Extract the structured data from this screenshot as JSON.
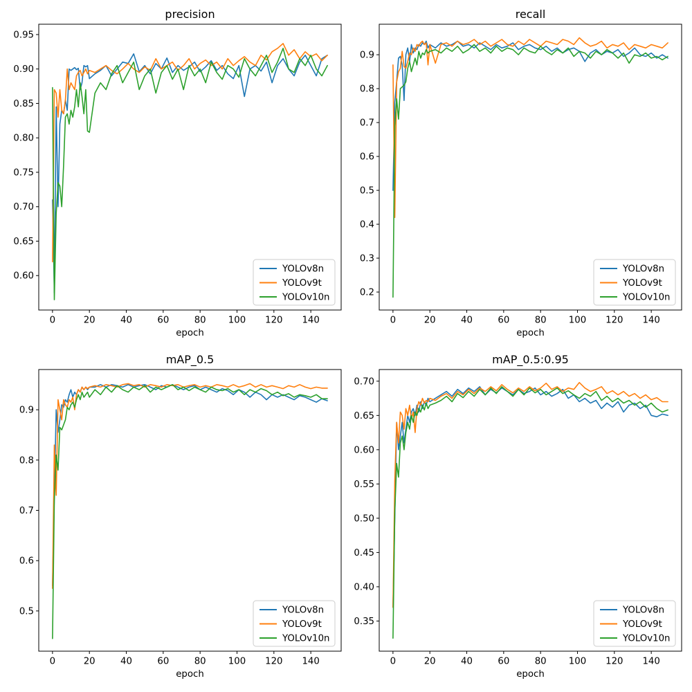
{
  "figure": {
    "background": "#ffffff",
    "frame_color": "#000000"
  },
  "palette": {
    "blue": "#1f77b4",
    "orange": "#ff7f0e",
    "green": "#2ca02c"
  },
  "legend": {
    "location": "lower right",
    "labels": [
      "YOLOv8n",
      "YOLOv9t",
      "YOLOv10n"
    ]
  },
  "epochs": [
    0,
    1,
    2,
    3,
    4,
    5,
    6,
    7,
    8,
    9,
    10,
    11,
    12,
    13,
    14,
    15,
    16,
    17,
    18,
    19,
    20,
    23,
    26,
    29,
    32,
    35,
    38,
    41,
    44,
    47,
    50,
    53,
    56,
    59,
    62,
    65,
    68,
    71,
    74,
    77,
    80,
    83,
    86,
    89,
    92,
    95,
    98,
    101,
    104,
    107,
    110,
    113,
    116,
    119,
    122,
    125,
    128,
    131,
    134,
    137,
    140,
    143,
    146,
    149
  ],
  "chart_data": [
    {
      "type": "line",
      "title": "precision",
      "xlabel": "epoch",
      "xlim": [
        -7.45,
        156.45
      ],
      "ylim": [
        0.55,
        0.965
      ],
      "xticks": [
        0,
        20,
        40,
        60,
        80,
        100,
        120,
        140
      ],
      "yticks": [
        "0.60",
        "0.65",
        "0.70",
        "0.75",
        "0.80",
        "0.85",
        "0.90",
        "0.95"
      ],
      "grid": false,
      "legend_position": "lower right",
      "series": [
        {
          "name": "YOLOv8n",
          "color": "#1f77b4",
          "values": [
            0.71,
            0.575,
            0.845,
            0.7,
            0.82,
            0.84,
            0.835,
            0.855,
            0.84,
            0.9,
            0.898,
            0.9,
            0.902,
            0.899,
            0.901,
            0.87,
            0.88,
            0.905,
            0.903,
            0.905,
            0.886,
            0.893,
            0.898,
            0.905,
            0.89,
            0.9,
            0.91,
            0.908,
            0.922,
            0.896,
            0.905,
            0.893,
            0.908,
            0.9,
            0.916,
            0.895,
            0.905,
            0.898,
            0.903,
            0.91,
            0.896,
            0.903,
            0.912,
            0.898,
            0.905,
            0.893,
            0.886,
            0.905,
            0.86,
            0.9,
            0.905,
            0.897,
            0.91,
            0.88,
            0.905,
            0.915,
            0.9,
            0.89,
            0.91,
            0.92,
            0.905,
            0.89,
            0.915,
            0.92
          ]
        },
        {
          "name": "YOLOv9t",
          "color": "#ff7f0e",
          "values": [
            0.62,
            0.87,
            0.865,
            0.83,
            0.87,
            0.84,
            0.835,
            0.855,
            0.9,
            0.87,
            0.88,
            0.875,
            0.87,
            0.89,
            0.895,
            0.898,
            0.89,
            0.895,
            0.9,
            0.893,
            0.898,
            0.895,
            0.9,
            0.905,
            0.898,
            0.893,
            0.9,
            0.908,
            0.9,
            0.895,
            0.903,
            0.898,
            0.915,
            0.9,
            0.905,
            0.91,
            0.898,
            0.905,
            0.915,
            0.9,
            0.908,
            0.913,
            0.905,
            0.91,
            0.9,
            0.915,
            0.905,
            0.912,
            0.918,
            0.91,
            0.905,
            0.92,
            0.913,
            0.925,
            0.93,
            0.937,
            0.92,
            0.928,
            0.915,
            0.925,
            0.918,
            0.922,
            0.912,
            0.92
          ]
        },
        {
          "name": "YOLOv10n",
          "color": "#2ca02c",
          "values": [
            0.873,
            0.565,
            0.69,
            0.735,
            0.73,
            0.7,
            0.76,
            0.83,
            0.835,
            0.82,
            0.84,
            0.83,
            0.845,
            0.87,
            0.845,
            0.88,
            0.86,
            0.835,
            0.87,
            0.81,
            0.808,
            0.865,
            0.88,
            0.87,
            0.893,
            0.905,
            0.88,
            0.895,
            0.91,
            0.87,
            0.89,
            0.9,
            0.865,
            0.895,
            0.905,
            0.885,
            0.9,
            0.87,
            0.905,
            0.89,
            0.9,
            0.88,
            0.91,
            0.895,
            0.885,
            0.905,
            0.9,
            0.888,
            0.915,
            0.9,
            0.89,
            0.905,
            0.92,
            0.895,
            0.91,
            0.93,
            0.9,
            0.895,
            0.915,
            0.905,
            0.92,
            0.9,
            0.89,
            0.905
          ]
        }
      ]
    },
    {
      "type": "line",
      "title": "recall",
      "xlabel": "epoch",
      "xlim": [
        -7.45,
        156.45
      ],
      "ylim": [
        0.147,
        0.99
      ],
      "xticks": [
        0,
        20,
        40,
        60,
        80,
        100,
        120,
        140
      ],
      "yticks": [
        "0.2",
        "0.3",
        "0.4",
        "0.5",
        "0.6",
        "0.7",
        "0.8",
        "0.9"
      ],
      "grid": false,
      "legend_position": "lower right",
      "series": [
        {
          "name": "YOLOv8n",
          "color": "#1f77b4",
          "values": [
            0.5,
            0.76,
            0.82,
            0.89,
            0.895,
            0.87,
            0.765,
            0.9,
            0.92,
            0.88,
            0.93,
            0.905,
            0.92,
            0.915,
            0.93,
            0.925,
            0.935,
            0.93,
            0.94,
            0.92,
            0.93,
            0.92,
            0.935,
            0.925,
            0.93,
            0.94,
            0.925,
            0.93,
            0.92,
            0.935,
            0.925,
            0.915,
            0.93,
            0.92,
            0.925,
            0.935,
            0.915,
            0.925,
            0.93,
            0.92,
            0.915,
            0.925,
            0.91,
            0.92,
            0.905,
            0.915,
            0.92,
            0.91,
            0.88,
            0.905,
            0.915,
            0.9,
            0.91,
            0.905,
            0.915,
            0.895,
            0.905,
            0.92,
            0.9,
            0.895,
            0.905,
            0.89,
            0.9,
            0.89
          ]
        },
        {
          "name": "YOLOv9t",
          "color": "#ff7f0e",
          "values": [
            0.87,
            0.42,
            0.82,
            0.85,
            0.86,
            0.91,
            0.865,
            0.86,
            0.88,
            0.905,
            0.9,
            0.92,
            0.91,
            0.93,
            0.925,
            0.935,
            0.94,
            0.93,
            0.935,
            0.87,
            0.93,
            0.875,
            0.93,
            0.935,
            0.925,
            0.94,
            0.93,
            0.935,
            0.945,
            0.93,
            0.94,
            0.925,
            0.935,
            0.945,
            0.93,
            0.925,
            0.94,
            0.93,
            0.945,
            0.935,
            0.925,
            0.94,
            0.935,
            0.93,
            0.945,
            0.94,
            0.93,
            0.95,
            0.935,
            0.925,
            0.93,
            0.94,
            0.92,
            0.93,
            0.925,
            0.935,
            0.915,
            0.93,
            0.925,
            0.92,
            0.93,
            0.925,
            0.92,
            0.935
          ]
        },
        {
          "name": "YOLOv10n",
          "color": "#2ca02c",
          "values": [
            0.185,
            0.69,
            0.77,
            0.71,
            0.8,
            0.805,
            0.81,
            0.82,
            0.86,
            0.88,
            0.85,
            0.87,
            0.89,
            0.87,
            0.91,
            0.89,
            0.905,
            0.9,
            0.915,
            0.905,
            0.91,
            0.915,
            0.905,
            0.92,
            0.91,
            0.925,
            0.905,
            0.915,
            0.93,
            0.91,
            0.92,
            0.905,
            0.925,
            0.91,
            0.92,
            0.915,
            0.9,
            0.92,
            0.91,
            0.905,
            0.925,
            0.91,
            0.9,
            0.915,
            0.905,
            0.92,
            0.895,
            0.91,
            0.905,
            0.89,
            0.91,
            0.9,
            0.915,
            0.905,
            0.89,
            0.905,
            0.875,
            0.9,
            0.895,
            0.905,
            0.89,
            0.895,
            0.885,
            0.895
          ]
        }
      ]
    },
    {
      "type": "line",
      "title": "mAP_0.5",
      "xlabel": "epoch",
      "xlim": [
        -7.45,
        156.45
      ],
      "ylim": [
        0.42,
        0.98
      ],
      "xticks": [
        0,
        20,
        40,
        60,
        80,
        100,
        120,
        140
      ],
      "yticks": [
        "0.5",
        "0.6",
        "0.7",
        "0.8",
        "0.9"
      ],
      "grid": false,
      "legend_position": "lower right",
      "series": [
        {
          "name": "YOLOv8n",
          "color": "#1f77b4",
          "values": [
            0.55,
            0.73,
            0.9,
            0.855,
            0.88,
            0.91,
            0.905,
            0.92,
            0.915,
            0.93,
            0.94,
            0.925,
            0.935,
            0.93,
            0.94,
            0.935,
            0.945,
            0.94,
            0.945,
            0.94,
            0.945,
            0.945,
            0.95,
            0.945,
            0.95,
            0.948,
            0.945,
            0.95,
            0.945,
            0.948,
            0.95,
            0.945,
            0.94,
            0.948,
            0.945,
            0.95,
            0.945,
            0.94,
            0.945,
            0.948,
            0.94,
            0.945,
            0.94,
            0.935,
            0.942,
            0.938,
            0.93,
            0.94,
            0.935,
            0.925,
            0.935,
            0.93,
            0.92,
            0.93,
            0.925,
            0.93,
            0.925,
            0.92,
            0.928,
            0.925,
            0.92,
            0.915,
            0.922,
            0.918
          ]
        },
        {
          "name": "YOLOv9t",
          "color": "#ff7f0e",
          "values": [
            0.545,
            0.83,
            0.73,
            0.92,
            0.9,
            0.88,
            0.92,
            0.91,
            0.905,
            0.92,
            0.915,
            0.925,
            0.9,
            0.93,
            0.94,
            0.935,
            0.945,
            0.94,
            0.945,
            0.942,
            0.945,
            0.948,
            0.945,
            0.95,
            0.948,
            0.945,
            0.95,
            0.952,
            0.948,
            0.95,
            0.945,
            0.95,
            0.948,
            0.945,
            0.95,
            0.948,
            0.95,
            0.945,
            0.948,
            0.95,
            0.945,
            0.948,
            0.945,
            0.95,
            0.948,
            0.945,
            0.95,
            0.945,
            0.948,
            0.952,
            0.945,
            0.95,
            0.945,
            0.948,
            0.945,
            0.942,
            0.948,
            0.945,
            0.95,
            0.945,
            0.942,
            0.945,
            0.943,
            0.943
          ]
        },
        {
          "name": "YOLOv10n",
          "color": "#2ca02c",
          "values": [
            0.445,
            0.72,
            0.81,
            0.78,
            0.865,
            0.86,
            0.87,
            0.88,
            0.905,
            0.9,
            0.91,
            0.915,
            0.905,
            0.92,
            0.93,
            0.92,
            0.935,
            0.925,
            0.93,
            0.935,
            0.925,
            0.94,
            0.93,
            0.945,
            0.935,
            0.948,
            0.94,
            0.935,
            0.945,
            0.94,
            0.948,
            0.935,
            0.945,
            0.94,
            0.945,
            0.95,
            0.94,
            0.945,
            0.938,
            0.945,
            0.94,
            0.935,
            0.945,
            0.94,
            0.938,
            0.942,
            0.935,
            0.94,
            0.93,
            0.94,
            0.935,
            0.942,
            0.938,
            0.93,
            0.935,
            0.928,
            0.932,
            0.925,
            0.93,
            0.928,
            0.925,
            0.93,
            0.922,
            0.922
          ]
        }
      ]
    },
    {
      "type": "line",
      "title": "mAP_0.5:0.95",
      "xlabel": "epoch",
      "xlim": [
        -7.45,
        156.45
      ],
      "ylim": [
        0.306,
        0.717
      ],
      "xticks": [
        0,
        20,
        40,
        60,
        80,
        100,
        120,
        140
      ],
      "yticks": [
        "0.35",
        "0.40",
        "0.45",
        "0.50",
        "0.55",
        "0.60",
        "0.65",
        "0.70"
      ],
      "grid": false,
      "legend_position": "lower right",
      "series": [
        {
          "name": "YOLOv8n",
          "color": "#1f77b4",
          "values": [
            0.37,
            0.5,
            0.64,
            0.6,
            0.62,
            0.64,
            0.61,
            0.63,
            0.65,
            0.64,
            0.655,
            0.66,
            0.65,
            0.665,
            0.655,
            0.67,
            0.66,
            0.67,
            0.665,
            0.675,
            0.67,
            0.675,
            0.68,
            0.685,
            0.678,
            0.688,
            0.682,
            0.69,
            0.685,
            0.692,
            0.68,
            0.688,
            0.683,
            0.69,
            0.685,
            0.68,
            0.688,
            0.682,
            0.685,
            0.69,
            0.68,
            0.685,
            0.678,
            0.682,
            0.688,
            0.675,
            0.68,
            0.67,
            0.675,
            0.668,
            0.672,
            0.66,
            0.668,
            0.662,
            0.67,
            0.655,
            0.665,
            0.668,
            0.66,
            0.665,
            0.65,
            0.648,
            0.652,
            0.65
          ]
        },
        {
          "name": "YOLOv9t",
          "color": "#ff7f0e",
          "values": [
            0.37,
            0.555,
            0.64,
            0.61,
            0.655,
            0.65,
            0.63,
            0.66,
            0.65,
            0.665,
            0.645,
            0.655,
            0.625,
            0.66,
            0.67,
            0.665,
            0.675,
            0.668,
            0.672,
            0.67,
            0.675,
            0.672,
            0.678,
            0.682,
            0.675,
            0.685,
            0.68,
            0.688,
            0.682,
            0.69,
            0.685,
            0.692,
            0.686,
            0.695,
            0.688,
            0.683,
            0.69,
            0.685,
            0.692,
            0.686,
            0.69,
            0.697,
            0.688,
            0.692,
            0.685,
            0.69,
            0.688,
            0.698,
            0.69,
            0.685,
            0.688,
            0.692,
            0.682,
            0.686,
            0.68,
            0.685,
            0.678,
            0.682,
            0.675,
            0.68,
            0.673,
            0.676,
            0.67,
            0.67
          ]
        },
        {
          "name": "YOLOv10n",
          "color": "#2ca02c",
          "values": [
            0.325,
            0.51,
            0.58,
            0.56,
            0.61,
            0.62,
            0.6,
            0.625,
            0.64,
            0.63,
            0.65,
            0.64,
            0.655,
            0.65,
            0.66,
            0.655,
            0.665,
            0.658,
            0.668,
            0.66,
            0.665,
            0.668,
            0.672,
            0.678,
            0.67,
            0.682,
            0.676,
            0.685,
            0.678,
            0.688,
            0.68,
            0.69,
            0.682,
            0.692,
            0.685,
            0.678,
            0.688,
            0.68,
            0.69,
            0.683,
            0.688,
            0.68,
            0.685,
            0.69,
            0.682,
            0.686,
            0.68,
            0.675,
            0.682,
            0.678,
            0.685,
            0.672,
            0.678,
            0.67,
            0.675,
            0.668,
            0.672,
            0.665,
            0.67,
            0.662,
            0.668,
            0.66,
            0.655,
            0.658
          ]
        }
      ]
    }
  ]
}
